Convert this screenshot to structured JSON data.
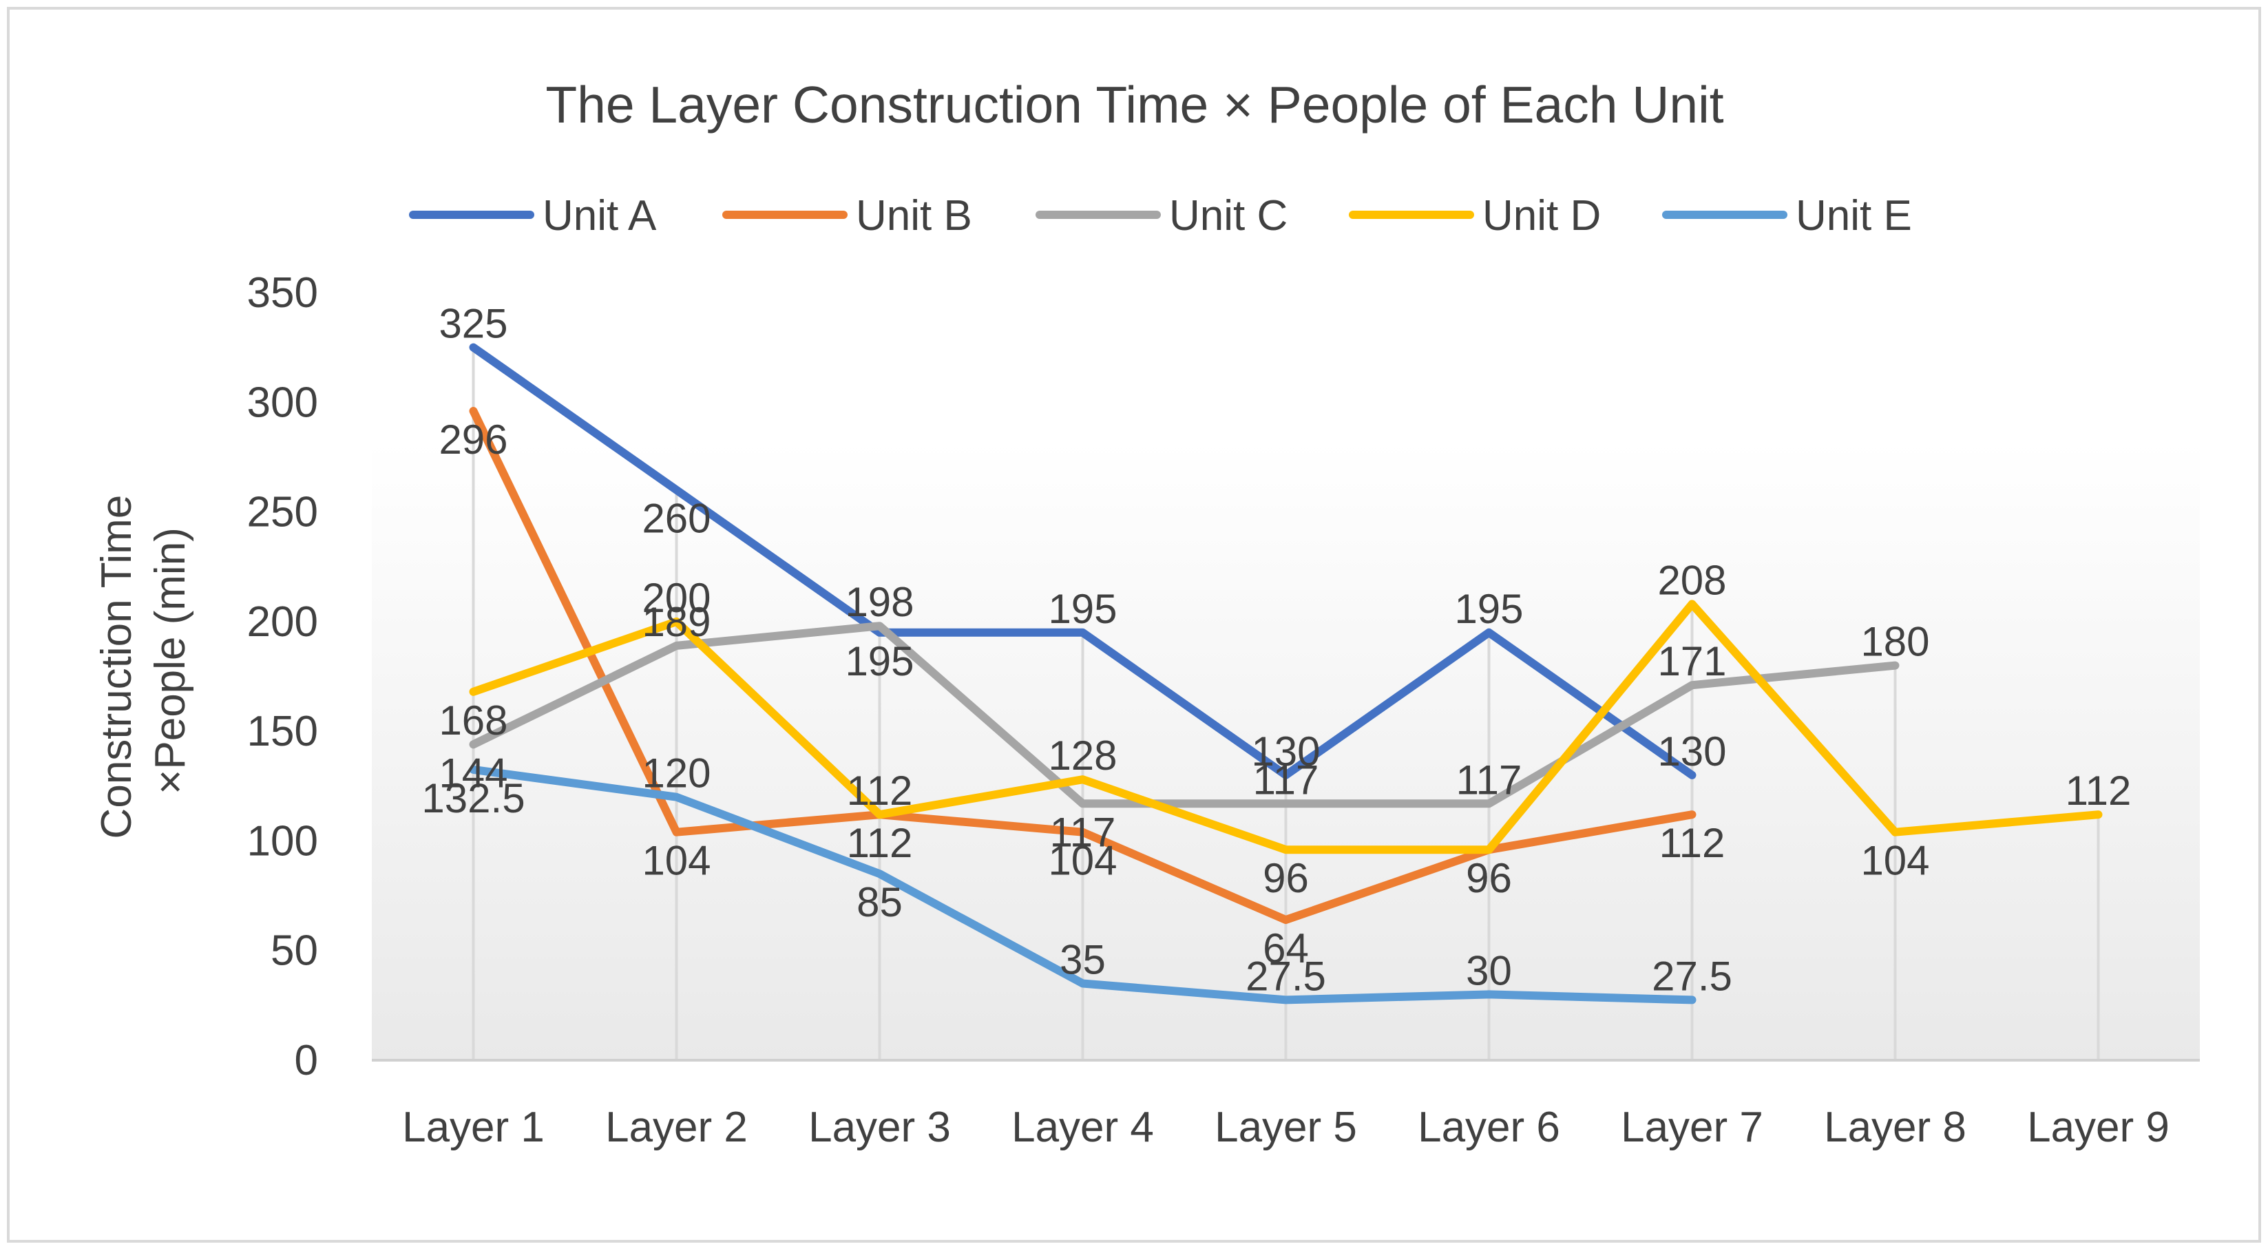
{
  "chart_data": {
    "type": "line",
    "title": "The Layer Construction Time × People of Each Unit",
    "xlabel": "",
    "ylabel_lines": [
      "Construction Time",
      "×People (min)"
    ],
    "categories": [
      "Layer 1",
      "Layer 2",
      "Layer 3",
      "Layer 4",
      "Layer 5",
      "Layer 6",
      "Layer 7",
      "Layer 8",
      "Layer 9"
    ],
    "ylim": [
      0,
      350
    ],
    "yticks": [
      0,
      50,
      100,
      150,
      200,
      250,
      300,
      350
    ],
    "ytick_labels": [
      "0",
      "50",
      "100",
      "150",
      "200",
      "250",
      "300",
      "350"
    ],
    "grid": "vertical drop lines",
    "legend": "top",
    "series": [
      {
        "name": "Unit A",
        "color": "#4472C4",
        "values": [
          325,
          260,
          195,
          195,
          130,
          195,
          130,
          null,
          null
        ],
        "labels": [
          "325",
          "260",
          "195",
          "195",
          "130",
          "195",
          "130",
          "",
          ""
        ]
      },
      {
        "name": "Unit B",
        "color": "#ED7D31",
        "values": [
          296,
          104,
          112,
          104,
          64,
          96,
          112,
          null,
          null
        ],
        "labels": [
          "296",
          "104",
          "112",
          "104",
          "64",
          "96",
          "112",
          "",
          ""
        ]
      },
      {
        "name": "Unit C",
        "color": "#A5A5A5",
        "values": [
          144,
          189,
          198,
          117,
          117,
          117,
          171,
          180,
          null
        ],
        "labels": [
          "144",
          "189",
          "198",
          "117",
          "117",
          "117",
          "171",
          "180",
          ""
        ]
      },
      {
        "name": "Unit D",
        "color": "#FFC000",
        "values": [
          168,
          200,
          112,
          128,
          96,
          96,
          208,
          104,
          112
        ],
        "labels": [
          "168",
          "200",
          "112",
          "128",
          "96",
          "96",
          "208",
          "104",
          "112"
        ]
      },
      {
        "name": "Unit E",
        "color": "#5B9BD5",
        "values": [
          132.5,
          120,
          85,
          35,
          27.5,
          30,
          27.5,
          null,
          null
        ],
        "labels": [
          "132.5",
          "120",
          "85",
          "35",
          "27.5",
          "30",
          "27.5",
          "",
          ""
        ]
      }
    ]
  }
}
